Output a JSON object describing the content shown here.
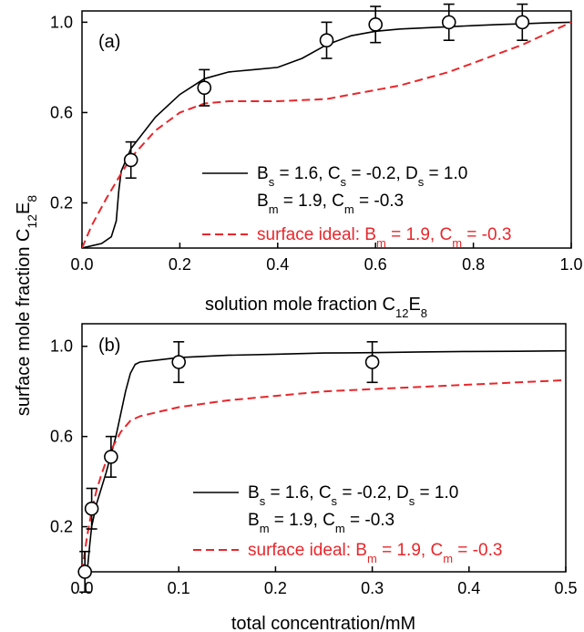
{
  "y_label": {
    "prefix": "surface mole fraction C",
    "sub1": "12",
    "mid": "E",
    "sub2": "8"
  },
  "chart_data": [
    {
      "type": "line",
      "panel_label": "(a)",
      "xlabel": {
        "prefix": "solution mole fraction C",
        "sub1": "12",
        "mid": "E",
        "sub2": "8"
      },
      "xlim": [
        0,
        1
      ],
      "ylim": [
        0,
        1.05
      ],
      "x_ticks": [
        "0.0",
        "0.2",
        "0.4",
        "0.6",
        "0.8",
        "1.0"
      ],
      "y_ticks": [
        "0.2",
        "0.6",
        "1.0"
      ],
      "x_tick_values": [
        0,
        0.2,
        0.4,
        0.6,
        0.8,
        1.0
      ],
      "y_tick_values": [
        0.2,
        0.6,
        1.0
      ],
      "legend": {
        "solid_line1": {
          "B": "B",
          "Bsub": "s",
          "Bval": " = 1.6, ",
          "C": "C",
          "Csub": "s",
          "Cval": " = -0.2, ",
          "D": "D",
          "Dsub": "s",
          "Dval": " = 1.0"
        },
        "solid_line2": {
          "B": "B",
          "Bsub": "m",
          "Bval": " = 1.9, ",
          "C": "C",
          "Csub": "m",
          "Cval": " = -0.3"
        },
        "dashed": {
          "text": "surface ideal: ",
          "B": "B",
          "Bsub": "m",
          "Bval": " = 1.9, ",
          "C": "C",
          "Csub": "m",
          "Cval": " = -0.3"
        }
      },
      "series": [
        {
          "style": "solid",
          "color": "#000000",
          "x": [
            0,
            0.04,
            0.06,
            0.07,
            0.075,
            0.08,
            0.09,
            0.1,
            0.15,
            0.2,
            0.25,
            0.3,
            0.35,
            0.4,
            0.45,
            0.5,
            0.55,
            0.6,
            0.65,
            0.7,
            0.75,
            0.8,
            0.85,
            0.9,
            0.95,
            1.0
          ],
          "y": [
            0,
            0.02,
            0.05,
            0.12,
            0.25,
            0.34,
            0.39,
            0.44,
            0.58,
            0.68,
            0.75,
            0.78,
            0.79,
            0.8,
            0.84,
            0.9,
            0.94,
            0.96,
            0.97,
            0.975,
            0.98,
            0.985,
            0.99,
            0.993,
            0.997,
            1.0
          ]
        },
        {
          "style": "dashed",
          "color": "#e8262b",
          "x": [
            0,
            0.02,
            0.05,
            0.08,
            0.1,
            0.15,
            0.2,
            0.25,
            0.3,
            0.35,
            0.4,
            0.45,
            0.5,
            0.55,
            0.6,
            0.65,
            0.7,
            0.75,
            0.8,
            0.85,
            0.9,
            0.95,
            1.0
          ],
          "y": [
            0,
            0.1,
            0.22,
            0.33,
            0.4,
            0.52,
            0.6,
            0.64,
            0.65,
            0.65,
            0.65,
            0.655,
            0.66,
            0.68,
            0.7,
            0.72,
            0.75,
            0.78,
            0.82,
            0.86,
            0.9,
            0.95,
            1.0
          ]
        },
        {
          "style": "markers",
          "color": "#000000",
          "x": [
            0.1,
            0.25,
            0.5,
            0.6,
            0.75,
            0.9
          ],
          "y": [
            0.39,
            0.71,
            0.92,
            0.99,
            1.0,
            1.0
          ],
          "err": [
            0.08,
            0.08,
            0.08,
            0.08,
            0.08,
            0.08
          ]
        }
      ]
    },
    {
      "type": "line",
      "panel_label": "(b)",
      "xlabel": "total concentration/mM",
      "xlim": [
        0,
        0.5
      ],
      "ylim": [
        0,
        1.1
      ],
      "x_ticks": [
        "0.0",
        "0.1",
        "0.2",
        "0.3",
        "0.4",
        "0.5"
      ],
      "y_ticks": [
        "0.2",
        "0.6",
        "1.0"
      ],
      "x_tick_values": [
        0,
        0.1,
        0.2,
        0.3,
        0.4,
        0.5
      ],
      "y_tick_values": [
        0.2,
        0.6,
        1.0
      ],
      "legend": {
        "solid_line1": {
          "B": "B",
          "Bsub": "s",
          "Bval": " = 1.6, ",
          "C": "C",
          "Csub": "s",
          "Cval": " = -0.2, ",
          "D": "D",
          "Dsub": "s",
          "Dval": " = 1.0"
        },
        "solid_line2": {
          "B": "B",
          "Bsub": "m",
          "Bval": " = 1.9, ",
          "C": "C",
          "Csub": "m",
          "Cval": " = -0.3"
        },
        "dashed": {
          "text": "surface ideal: ",
          "B": "B",
          "Bsub": "m",
          "Bval": " = 1.9, ",
          "C": "C",
          "Csub": "m",
          "Cval": " = -0.3"
        }
      },
      "series": [
        {
          "style": "solid",
          "color": "#000000",
          "x": [
            0.003,
            0.006,
            0.008,
            0.01,
            0.015,
            0.02,
            0.025,
            0.03,
            0.035,
            0.04,
            0.045,
            0.05,
            0.055,
            0.06,
            0.08,
            0.1,
            0.15,
            0.2,
            0.25,
            0.3,
            0.35,
            0.4,
            0.45,
            0.5
          ],
          "y": [
            0,
            0.03,
            0.12,
            0.2,
            0.3,
            0.37,
            0.44,
            0.52,
            0.6,
            0.7,
            0.8,
            0.88,
            0.92,
            0.93,
            0.94,
            0.95,
            0.96,
            0.965,
            0.97,
            0.972,
            0.975,
            0.977,
            0.978,
            0.98
          ]
        },
        {
          "style": "dashed",
          "color": "#e8262b",
          "x": [
            0,
            0.005,
            0.01,
            0.015,
            0.02,
            0.025,
            0.03,
            0.035,
            0.04,
            0.05,
            0.06,
            0.08,
            0.1,
            0.15,
            0.2,
            0.25,
            0.3,
            0.35,
            0.4,
            0.45,
            0.5
          ],
          "y": [
            0,
            0.15,
            0.27,
            0.36,
            0.43,
            0.49,
            0.54,
            0.58,
            0.62,
            0.67,
            0.69,
            0.71,
            0.73,
            0.76,
            0.78,
            0.8,
            0.81,
            0.82,
            0.83,
            0.84,
            0.85
          ]
        },
        {
          "style": "markers",
          "color": "#000000",
          "x": [
            0.003,
            0.01,
            0.03,
            0.1,
            0.3
          ],
          "y": [
            0.0,
            0.28,
            0.51,
            0.93,
            0.93
          ],
          "err": [
            0.09,
            0.09,
            0.09,
            0.09,
            0.09
          ]
        }
      ]
    }
  ]
}
